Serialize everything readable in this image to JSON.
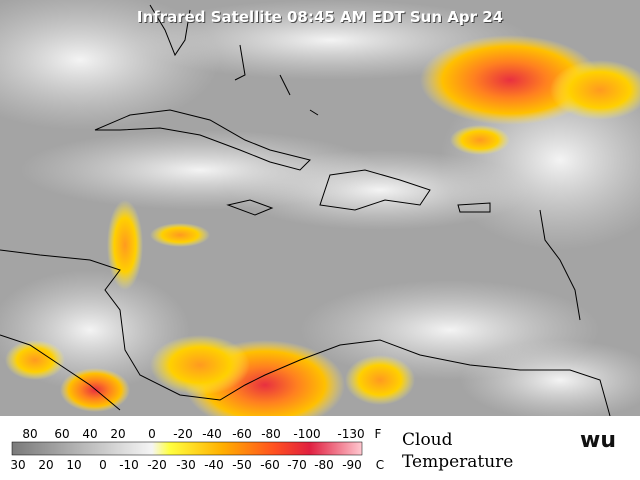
{
  "title": "Infrared Satellite 08:45 AM EDT Sun Apr 24",
  "legend": {
    "fahrenheit": {
      "unit": "F",
      "labels": [
        80,
        60,
        40,
        20,
        0,
        -20,
        -40,
        -60,
        -80,
        -100,
        -130
      ]
    },
    "celsius": {
      "unit": "C",
      "labels": [
        30,
        20,
        10,
        0,
        -10,
        -20,
        -30,
        -40,
        -50,
        -60,
        -70,
        -80,
        -90
      ]
    },
    "caption": [
      "Cloud",
      "Temperature"
    ]
  },
  "logo": "wu"
}
